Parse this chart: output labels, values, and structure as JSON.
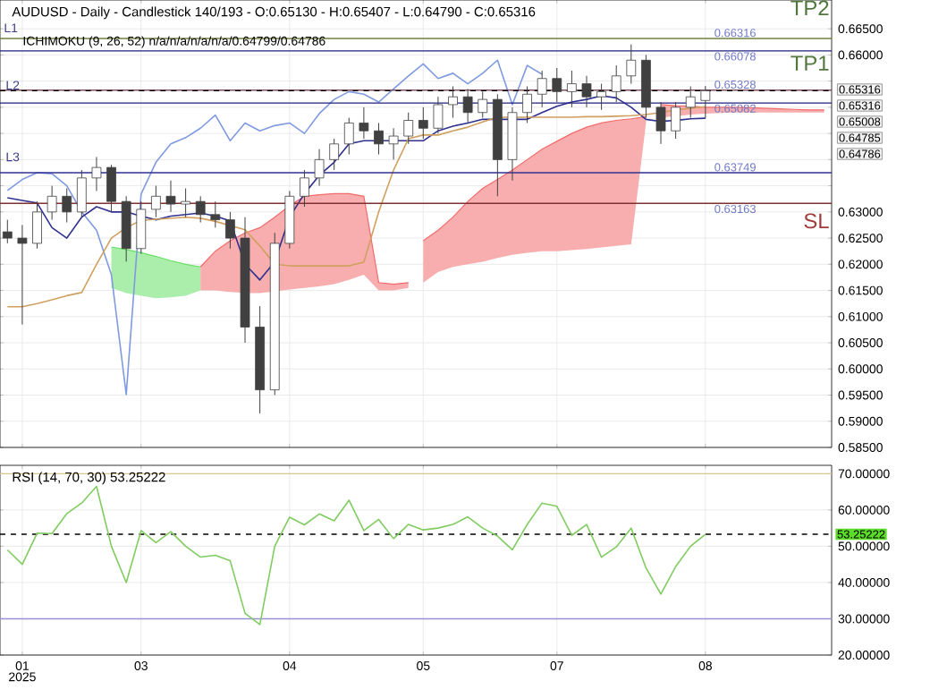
{
  "chart_data": [
    {
      "type": "candlestick",
      "title": "AUDUSD - Daily - Candlestick   140/193 - O:0.65130 - H:0.65407 - L:0.64790 - C:0.65316",
      "subtitle": "ICHIMOKU (9, 26, 52)   n/a/n/a/n/a/n/a/0.64799/0.64786",
      "color": "#404040",
      "categories": [
        null,
        "01",
        null,
        null,
        null,
        null,
        null,
        null,
        null,
        "03",
        null,
        null,
        null,
        null,
        null,
        null,
        null,
        null,
        null,
        "04",
        null,
        null,
        null,
        null,
        null,
        null,
        null,
        null,
        "05",
        null,
        null,
        null,
        null,
        null,
        null,
        null,
        null,
        "07",
        null,
        null,
        null,
        null,
        null,
        null,
        null,
        null,
        null,
        "08",
        null,
        null,
        null,
        null,
        null,
        null,
        null,
        null
      ],
      "ohlc": [
        [
          0.6262,
          0.6285,
          0.624,
          0.625
        ],
        [
          0.625,
          0.6275,
          0.6085,
          0.624
        ],
        [
          0.624,
          0.632,
          0.623,
          0.63
        ],
        [
          0.63,
          0.635,
          0.6285,
          0.633
        ],
        [
          0.633,
          0.6345,
          0.628,
          0.63
        ],
        [
          0.63,
          0.638,
          0.629,
          0.6365
        ],
        [
          0.6365,
          0.6405,
          0.634,
          0.6385
        ],
        [
          0.6385,
          0.639,
          0.63,
          0.632
        ],
        [
          0.632,
          0.633,
          0.6205,
          0.623
        ],
        [
          0.623,
          0.632,
          0.622,
          0.6305
        ],
        [
          0.6305,
          0.635,
          0.629,
          0.633
        ],
        [
          0.633,
          0.636,
          0.63,
          0.6315
        ],
        [
          0.6315,
          0.6345,
          0.629,
          0.632
        ],
        [
          0.632,
          0.633,
          0.628,
          0.6295
        ],
        [
          0.6295,
          0.632,
          0.627,
          0.6285
        ],
        [
          0.6285,
          0.63,
          0.623,
          0.625
        ],
        [
          0.625,
          0.629,
          0.605,
          0.608
        ],
        [
          0.608,
          0.612,
          0.5915,
          0.596
        ],
        [
          0.596,
          0.626,
          0.595,
          0.624
        ],
        [
          0.624,
          0.634,
          0.623,
          0.633
        ],
        [
          0.633,
          0.638,
          0.631,
          0.6365
        ],
        [
          0.6365,
          0.642,
          0.635,
          0.64
        ],
        [
          0.64,
          0.644,
          0.638,
          0.643
        ],
        [
          0.643,
          0.648,
          0.641,
          0.647
        ],
        [
          0.647,
          0.65,
          0.644,
          0.6455
        ],
        [
          0.6455,
          0.647,
          0.641,
          0.643
        ],
        [
          0.643,
          0.646,
          0.64,
          0.6445
        ],
        [
          0.6445,
          0.649,
          0.643,
          0.6475
        ],
        [
          0.6475,
          0.65,
          0.644,
          0.646
        ],
        [
          0.646,
          0.652,
          0.645,
          0.6505
        ],
        [
          0.6505,
          0.654,
          0.648,
          0.652
        ],
        [
          0.652,
          0.6535,
          0.647,
          0.649
        ],
        [
          0.649,
          0.653,
          0.648,
          0.6515
        ],
        [
          0.6515,
          0.6525,
          0.633,
          0.64
        ],
        [
          0.64,
          0.65,
          0.636,
          0.649
        ],
        [
          0.649,
          0.654,
          0.647,
          0.6525
        ],
        [
          0.6525,
          0.657,
          0.65,
          0.6555
        ],
        [
          0.6555,
          0.6575,
          0.651,
          0.653
        ],
        [
          0.653,
          0.657,
          0.65,
          0.6545
        ],
        [
          0.6545,
          0.656,
          0.65,
          0.652
        ],
        [
          0.652,
          0.6545,
          0.6495,
          0.653
        ],
        [
          0.653,
          0.658,
          0.651,
          0.656
        ],
        [
          0.656,
          0.662,
          0.6545,
          0.659
        ],
        [
          0.659,
          0.66,
          0.648,
          0.65
        ],
        [
          0.65,
          0.651,
          0.643,
          0.6455
        ],
        [
          0.6455,
          0.651,
          0.644,
          0.65
        ],
        [
          0.65,
          0.654,
          0.648,
          0.652
        ],
        [
          0.6513,
          0.65407,
          0.6479,
          0.65316
        ],
        null,
        null,
        null,
        null,
        null,
        null,
        null,
        null
      ],
      "series": [
        {
          "type": "line",
          "color": "#66e066",
          "upper": [
            null,
            null,
            null,
            null,
            null,
            null,
            null,
            0.6233,
            0.6228,
            0.6222,
            0.6215,
            0.6207,
            0.62,
            0.6195,
            null,
            null,
            null,
            null,
            null,
            null,
            null,
            null,
            null,
            null,
            null,
            null,
            null,
            null,
            null,
            null,
            null,
            null,
            null,
            null,
            null,
            null,
            null,
            null,
            null,
            null,
            null,
            null,
            null,
            null,
            null,
            null,
            null,
            null,
            null,
            null,
            null,
            null,
            null,
            null,
            null,
            null
          ],
          "values": [
            null,
            null,
            null,
            null,
            null,
            null,
            null,
            0.6233,
            0.6228,
            0.6222,
            0.6215,
            0.6207,
            0.62,
            0.6195,
            null,
            null,
            null,
            null,
            null,
            null,
            null,
            null,
            null,
            null,
            null,
            null,
            null,
            null,
            null,
            null,
            null,
            null,
            null,
            null,
            null,
            null,
            null,
            null,
            null,
            null,
            null,
            null,
            null,
            null,
            null,
            null,
            null,
            null,
            null,
            null,
            null,
            null,
            null,
            null,
            null,
            null
          ],
          "lower": [
            null,
            null,
            null,
            null,
            null,
            null,
            null,
            0.6155,
            0.6145,
            0.614,
            0.6135,
            0.6137,
            0.614,
            0.615,
            null,
            null,
            null,
            null,
            null,
            null,
            null,
            null,
            null,
            null,
            null,
            null,
            null,
            null,
            null,
            null,
            null,
            null,
            null,
            null,
            null,
            null,
            null,
            null,
            null,
            null,
            null,
            null,
            null,
            null,
            null,
            null,
            null,
            null,
            null,
            null,
            null,
            null,
            null,
            null,
            null,
            null
          ]
        },
        {
          "type": "line",
          "color": "#f26b6b",
          "upper": [
            null,
            null,
            null,
            null,
            null,
            null,
            null,
            null,
            null,
            null,
            null,
            null,
            null,
            0.6195,
            0.6225,
            0.6245,
            0.626,
            0.627,
            0.629,
            0.6312,
            0.633,
            0.6333,
            0.6335,
            0.6335,
            0.633,
            0.6165,
            0.6162,
            0.6165,
            null,
            null,
            null,
            null,
            null,
            null,
            null,
            null,
            null,
            null,
            null,
            null,
            null,
            null,
            null,
            null,
            null,
            null,
            null,
            null,
            null,
            null,
            null,
            null,
            null,
            null,
            null,
            null
          ],
          "values": [
            null,
            null,
            null,
            null,
            null,
            null,
            null,
            null,
            null,
            null,
            null,
            null,
            null,
            0.6195,
            0.6225,
            0.6245,
            0.626,
            0.627,
            0.629,
            0.6312,
            0.633,
            0.6333,
            0.6335,
            0.6335,
            0.633,
            0.6165,
            0.6162,
            0.6165,
            null,
            null,
            null,
            null,
            null,
            null,
            null,
            null,
            null,
            null,
            null,
            null,
            null,
            null,
            null,
            null,
            null,
            null,
            null,
            null,
            null,
            null,
            null,
            null,
            null,
            null,
            null,
            null
          ],
          "lower": [
            null,
            null,
            null,
            null,
            null,
            null,
            null,
            null,
            null,
            null,
            null,
            null,
            null,
            0.615,
            0.615,
            0.6147,
            0.6145,
            0.6145,
            0.6148,
            0.6152,
            0.6155,
            0.6158,
            0.6162,
            0.617,
            0.618,
            0.615,
            0.615,
            0.6155,
            null,
            null,
            null,
            null,
            null,
            null,
            null,
            null,
            null,
            null,
            null,
            null,
            null,
            null,
            null,
            null,
            null,
            null,
            null,
            null,
            null,
            null,
            null,
            null,
            null,
            null,
            null,
            null
          ]
        },
        {
          "type": "line",
          "color": "#f26b6b",
          "upper": [
            null,
            null,
            null,
            null,
            null,
            null,
            null,
            null,
            null,
            null,
            null,
            null,
            null,
            null,
            null,
            null,
            null,
            null,
            null,
            null,
            null,
            null,
            null,
            null,
            null,
            null,
            null,
            null,
            0.6245,
            0.6265,
            0.629,
            0.632,
            0.6345,
            0.6362,
            0.638,
            0.64,
            0.642,
            0.6435,
            0.645,
            0.6462,
            0.647,
            0.6475,
            0.6478,
            0.6482,
            null,
            null,
            null,
            null,
            null,
            null,
            null,
            null,
            null,
            null,
            null,
            null
          ],
          "values": [
            null,
            null,
            null,
            null,
            null,
            null,
            null,
            null,
            null,
            null,
            null,
            null,
            null,
            null,
            null,
            null,
            null,
            null,
            null,
            null,
            null,
            null,
            null,
            null,
            null,
            null,
            null,
            null,
            0.6245,
            0.6265,
            0.629,
            0.632,
            0.6345,
            0.6362,
            0.638,
            0.64,
            0.642,
            0.6435,
            0.645,
            0.6462,
            0.647,
            0.6475,
            0.6478,
            0.6482,
            null,
            null,
            null,
            null,
            null,
            null,
            null,
            null,
            null,
            null,
            null,
            null
          ],
          "lower": [
            null,
            null,
            null,
            null,
            null,
            null,
            null,
            null,
            null,
            null,
            null,
            null,
            null,
            null,
            null,
            null,
            null,
            null,
            null,
            null,
            null,
            null,
            null,
            null,
            null,
            null,
            null,
            null,
            0.6165,
            0.6185,
            0.6195,
            0.62,
            0.6205,
            0.6212,
            0.6218,
            0.6222,
            0.6225,
            0.6225,
            0.6227,
            0.6229,
            0.6232,
            0.6235,
            0.6238,
            0.647,
            null,
            null,
            null,
            null,
            null,
            null,
            null,
            null,
            null,
            null,
            null,
            null
          ]
        },
        {
          "type": "line",
          "color": "#f26b6b",
          "upper": [
            null,
            null,
            null,
            null,
            null,
            null,
            null,
            null,
            null,
            null,
            null,
            null,
            null,
            null,
            null,
            null,
            null,
            null,
            null,
            null,
            null,
            null,
            null,
            null,
            null,
            null,
            null,
            null,
            null,
            null,
            null,
            null,
            null,
            null,
            null,
            null,
            null,
            null,
            null,
            null,
            null,
            null,
            null,
            null,
            0.6505,
            0.6503,
            0.6502,
            0.65,
            0.65,
            0.65,
            0.6499,
            0.6498,
            0.6497,
            0.6496,
            0.6495,
            0.6495
          ],
          "values": [
            null,
            null,
            null,
            null,
            null,
            null,
            null,
            null,
            null,
            null,
            null,
            null,
            null,
            null,
            null,
            null,
            null,
            null,
            null,
            null,
            null,
            null,
            null,
            null,
            null,
            null,
            null,
            null,
            null,
            null,
            null,
            null,
            null,
            null,
            null,
            null,
            null,
            null,
            null,
            null,
            null,
            null,
            null,
            null,
            0.6505,
            0.6503,
            0.6502,
            0.65,
            0.65,
            0.65,
            0.6499,
            0.6498,
            0.6497,
            0.6496,
            0.6495,
            0.6495
          ],
          "lower": [
            null,
            null,
            null,
            null,
            null,
            null,
            null,
            null,
            null,
            null,
            null,
            null,
            null,
            null,
            null,
            null,
            null,
            null,
            null,
            null,
            null,
            null,
            null,
            null,
            null,
            null,
            null,
            null,
            null,
            null,
            null,
            null,
            null,
            null,
            null,
            null,
            null,
            null,
            null,
            null,
            null,
            null,
            null,
            null,
            0.648,
            0.6483,
            0.6486,
            0.6488,
            0.6489,
            0.649,
            0.649,
            0.649,
            0.649,
            0.649,
            0.649,
            0.649
          ]
        },
        {
          "type": "line",
          "color": "#7f9ae0",
          "values": [
            0.6341,
            0.6362,
            0.6375,
            0.6373,
            0.635,
            0.63,
            0.6265,
            0.618,
            0.5951,
            0.6334,
            0.6395,
            0.643,
            0.6442,
            0.646,
            0.6485,
            0.6436,
            0.647,
            0.6455,
            0.6465,
            0.647,
            0.645,
            0.6488,
            0.6515,
            0.653,
            0.6525,
            0.651,
            0.6535,
            0.656,
            0.6583,
            0.6555,
            0.6565,
            0.6545,
            0.6565,
            0.659,
            0.6505,
            0.658,
            0.6563,
            null,
            null,
            null,
            null,
            null,
            null,
            null,
            null,
            null,
            null,
            null,
            null,
            null,
            null,
            null,
            null,
            null,
            null,
            null
          ]
        },
        {
          "type": "line",
          "color": "#303090",
          "values": [
            0.6327,
            0.6322,
            0.6317,
            0.627,
            0.625,
            0.629,
            0.631,
            0.63,
            0.63,
            0.6292,
            0.6285,
            0.6292,
            0.6295,
            0.6298,
            0.6292,
            0.6283,
            0.62,
            0.617,
            0.6205,
            0.629,
            0.6335,
            0.637,
            0.6395,
            0.643,
            0.6436,
            0.6436,
            0.6436,
            0.6436,
            0.6436,
            0.6455,
            0.6464,
            0.647,
            0.6477,
            0.6477,
            0.6477,
            0.6477,
            0.649,
            0.6502,
            0.651,
            0.6515,
            0.6522,
            0.6518,
            0.65,
            0.6477,
            0.6473,
            0.6475,
            0.6478,
            0.6479,
            null,
            null,
            null,
            null,
            null,
            null,
            null,
            null
          ]
        },
        {
          "type": "line",
          "color": "#d0a060",
          "values": [
            0.6119,
            0.6119,
            0.6125,
            0.6132,
            0.614,
            0.6146,
            0.62,
            0.625,
            0.627,
            0.6284,
            0.6286,
            0.6288,
            0.629,
            0.6288,
            0.6282,
            0.6274,
            0.6266,
            0.6235,
            0.62,
            0.6197,
            0.6197,
            0.6197,
            0.6197,
            0.6197,
            0.6204,
            0.63,
            0.638,
            0.644,
            0.6447,
            0.6447,
            0.6455,
            0.6462,
            0.6472,
            0.6481,
            0.6481,
            0.6481,
            0.6481,
            0.6481,
            0.6481,
            0.6482,
            0.6482,
            0.6483,
            0.6484,
            0.6486,
            0.649,
            0.6495,
            0.6498,
            0.6501,
            null,
            null,
            null,
            null,
            null,
            null,
            null,
            null
          ]
        }
      ],
      "ref_lines": [
        {
          "axis": "y",
          "value": 0.66316,
          "label": "0.66316",
          "color": "#708040"
        },
        {
          "axis": "y",
          "value": 0.66078,
          "label": "0.66078",
          "color": "#202080"
        },
        {
          "axis": "y",
          "value": 0.65328,
          "label": "0.65328",
          "color": "#805060"
        },
        {
          "axis": "y",
          "value": 0.65082,
          "label": "0.65082",
          "color": "#202080"
        },
        {
          "axis": "y",
          "value": 0.63749,
          "label": "0.63749",
          "color": "#303090"
        },
        {
          "axis": "y",
          "value": 0.63163,
          "label": "0.63163",
          "color": "#803030"
        },
        {
          "axis": "y",
          "value": 0.65316,
          "color": "#000000",
          "line_style": "dashed"
        }
      ],
      "annotations": [
        "TP2",
        "TP1",
        "SL",
        "L1",
        "L2",
        "L3",
        "0.65316",
        "0.65316",
        "0.65008",
        "0.64785",
        "0.64786"
      ],
      "ylim": [
        0.585,
        0.6705
      ],
      "yticks": [
        {
          "value": 0.585,
          "label": "0.58500"
        },
        {
          "value": 0.59,
          "label": "0.59000"
        },
        {
          "value": 0.595,
          "label": "0.59500"
        },
        {
          "value": 0.6,
          "label": "0.60000"
        },
        {
          "value": 0.605,
          "label": "0.60500"
        },
        {
          "value": 0.61,
          "label": "0.61000"
        },
        {
          "value": 0.615,
          "label": "0.61500"
        },
        {
          "value": 0.62,
          "label": "0.62000"
        },
        {
          "value": 0.625,
          "label": "0.62500"
        },
        {
          "value": 0.63,
          "label": "0.63000"
        },
        {
          "value": 0.635,
          "label": null
        },
        {
          "value": 0.64,
          "label": null
        },
        {
          "value": 0.645,
          "label": null
        },
        {
          "value": 0.65,
          "label": null
        },
        {
          "value": 0.655,
          "label": null
        },
        {
          "value": 0.66,
          "label": "0.66000"
        },
        {
          "value": 0.665,
          "label": "0.66500"
        }
      ],
      "grid": true,
      "tick_labels": "y"
    },
    {
      "type": "line",
      "title": "RSI (14, 70, 30)   53.25222",
      "color": "#80cc60",
      "categories": [
        null,
        "01",
        null,
        null,
        null,
        null,
        null,
        null,
        null,
        "03",
        null,
        null,
        null,
        null,
        null,
        null,
        null,
        null,
        null,
        "04",
        null,
        null,
        null,
        null,
        null,
        null,
        null,
        null,
        "05",
        null,
        null,
        null,
        null,
        null,
        null,
        null,
        null,
        "07",
        null,
        null,
        null,
        null,
        null,
        null,
        null,
        null,
        null,
        "08",
        null,
        null,
        null,
        null,
        null,
        null,
        null,
        null
      ],
      "values": [
        49.0,
        45.0,
        53.6,
        53.5,
        59.0,
        61.9,
        66.5,
        50.0,
        40.0,
        54.3,
        51.0,
        54.0,
        50.0,
        47.0,
        47.5,
        46.0,
        31.5,
        28.4,
        50.0,
        58.0,
        55.9,
        58.9,
        57.0,
        62.7,
        54.3,
        57.4,
        52.1,
        56.0,
        54.5,
        55.0,
        56.0,
        58.1,
        55.0,
        52.8,
        49.0,
        56.0,
        61.9,
        61.0,
        53.0,
        56.0,
        47.0,
        49.8,
        55.0,
        44.0,
        36.8,
        44.4,
        50.0,
        53.3,
        null,
        null,
        null,
        null,
        null,
        null,
        null,
        null
      ],
      "ref_lines": [
        {
          "axis": "y",
          "value": 70,
          "color": "#d8c890"
        },
        {
          "axis": "y",
          "value": 30,
          "color": "#9a90d8"
        },
        {
          "axis": "y",
          "value": 53.3,
          "color": "#000000",
          "line_style": "dashed"
        }
      ],
      "annotations": [
        "53.25222",
        "2025"
      ],
      "ylim": [
        20,
        72.3
      ],
      "yticks": [
        {
          "value": 20,
          "label": "20.00000"
        },
        {
          "value": 30,
          "label": "30.00000"
        },
        {
          "value": 40,
          "label": "40.00000"
        },
        {
          "value": 50,
          "label": "50.00000"
        },
        {
          "value": 60,
          "label": "60.00000"
        },
        {
          "value": 70,
          "label": "70.00000"
        }
      ],
      "grid": true
    }
  ]
}
